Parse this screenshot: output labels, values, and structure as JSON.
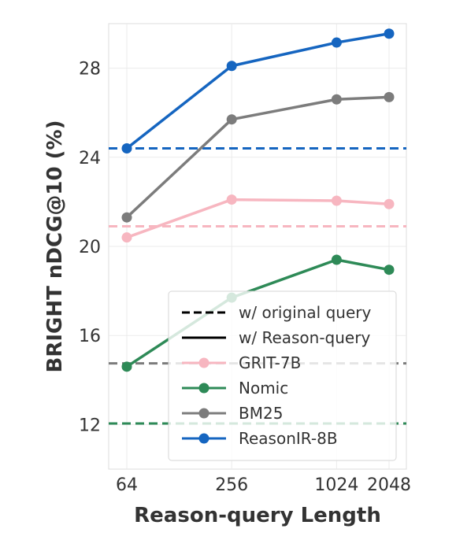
{
  "chart_data": {
    "type": "line",
    "xlabel": "Reason-query Length",
    "ylabel": "BRIGHT nDCG@10 (%)",
    "x_scale": "log2",
    "x": [
      64,
      256,
      1024,
      2048
    ],
    "x_tick_labels": [
      "64",
      "256",
      "1024",
      "2048"
    ],
    "ylim": [
      10,
      30
    ],
    "y_ticks": [
      12,
      16,
      20,
      24,
      28
    ],
    "grid": true,
    "legend_position": "lower-right",
    "legend_style_entries": [
      {
        "label": "w/ original query",
        "line": "dashed"
      },
      {
        "label": "w/ Reason-query",
        "line": "solid"
      }
    ],
    "series": [
      {
        "name": "GRIT-7B",
        "color": "#f7b6c0",
        "values": [
          20.4,
          22.1,
          22.05,
          21.9
        ],
        "original_query_baseline": 20.9
      },
      {
        "name": "Nomic",
        "color": "#2e8a57",
        "values": [
          14.6,
          17.7,
          19.4,
          18.95
        ],
        "original_query_baseline": 12.05
      },
      {
        "name": "BM25",
        "color": "#7c7c7c",
        "values": [
          21.3,
          25.7,
          26.6,
          26.7
        ],
        "original_query_baseline": 14.75
      },
      {
        "name": "ReasonIR-8B",
        "color": "#1565c0",
        "values": [
          24.4,
          28.1,
          29.15,
          29.55
        ],
        "original_query_baseline": 24.4
      }
    ]
  }
}
